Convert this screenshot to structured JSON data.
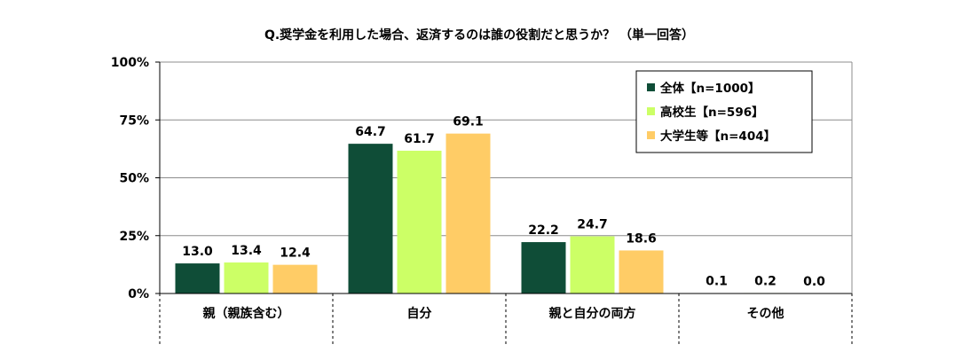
{
  "chart_data": {
    "type": "bar",
    "title": "Q.奨学金を利用した場合、返済するのは誰の役割だと思うか？ （単一回答）",
    "categories": [
      "親（親族含む）",
      "自分",
      "親と自分の両方",
      "その他"
    ],
    "series": [
      {
        "name": "全体【n=1000】",
        "values": [
          13.0,
          64.7,
          22.2,
          0.1
        ],
        "labels": [
          "13.0",
          "64.7",
          "22.2",
          "0.1"
        ],
        "color": "#0f4d37"
      },
      {
        "name": "高校生【n=596】",
        "values": [
          13.4,
          61.7,
          24.7,
          0.2
        ],
        "labels": [
          "13.4",
          "61.7",
          "24.7",
          "0.2"
        ],
        "color": "#ccff66"
      },
      {
        "name": "大学生等【n=404】",
        "values": [
          12.4,
          69.1,
          18.6,
          0.0
        ],
        "labels": [
          "12.4",
          "69.1",
          "18.6",
          "0.0"
        ],
        "color": "#ffcc66"
      }
    ],
    "ylim": [
      0,
      100
    ],
    "yticks": [
      "0%",
      "25%",
      "50%",
      "75%",
      "100%"
    ],
    "ytick_values": [
      0,
      25,
      50,
      75,
      100
    ],
    "xlabel": "",
    "ylabel": "",
    "grid": true,
    "legend_position": "top-right"
  }
}
